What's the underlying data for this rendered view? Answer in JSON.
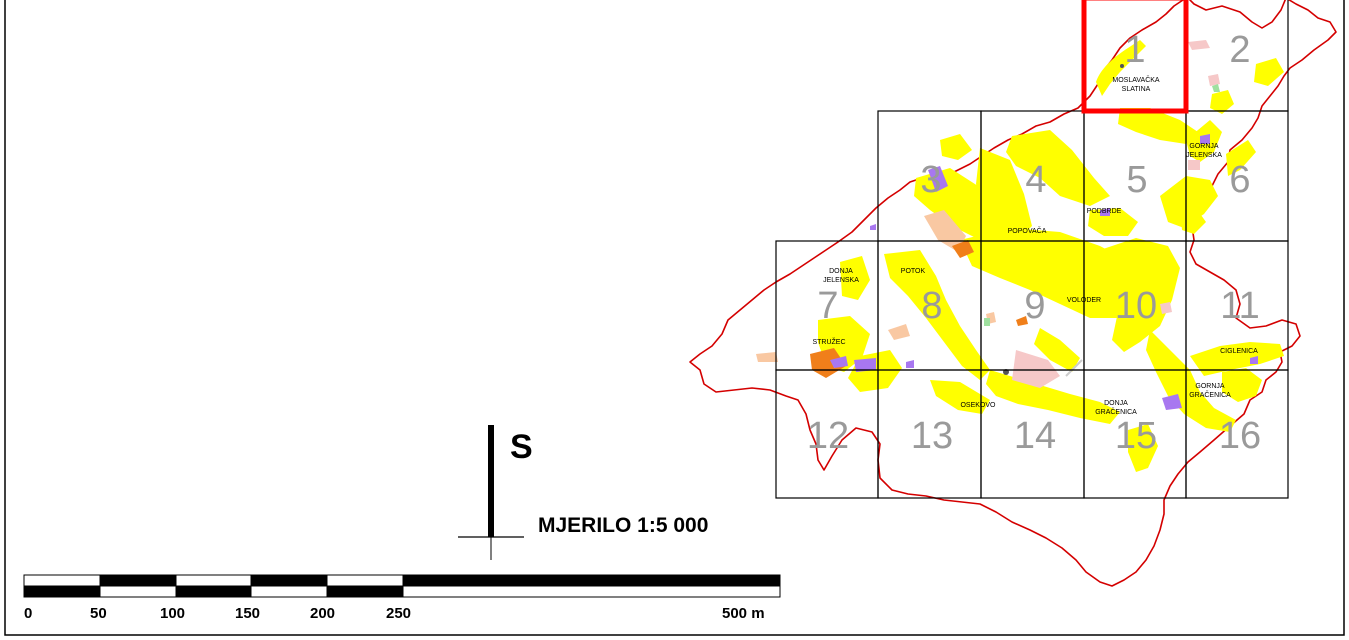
{
  "map": {
    "colors": {
      "boundary": "#d40000",
      "selected_sheet": "#ff0000",
      "grid": "#000000",
      "settlement": "#ffff00",
      "orange": "#f07f1a",
      "peach": "#f9c8a2",
      "purple": "#a877f0",
      "pink": "#f6c8c8"
    },
    "selected_sheet": "1",
    "sheets": [
      {
        "id": "s1",
        "label": "1"
      },
      {
        "id": "s2",
        "label": "2"
      },
      {
        "id": "s3",
        "label": "3"
      },
      {
        "id": "s4",
        "label": "4"
      },
      {
        "id": "s5",
        "label": "5"
      },
      {
        "id": "s6",
        "label": "6"
      },
      {
        "id": "s7",
        "label": "7"
      },
      {
        "id": "s8",
        "label": "8"
      },
      {
        "id": "s9",
        "label": "9"
      },
      {
        "id": "s10",
        "label": "10"
      },
      {
        "id": "s11",
        "label": "11"
      },
      {
        "id": "s12",
        "label": "12"
      },
      {
        "id": "s13",
        "label": "13"
      },
      {
        "id": "s14",
        "label": "14"
      },
      {
        "id": "s15",
        "label": "15"
      },
      {
        "id": "s16",
        "label": "16"
      }
    ],
    "places": {
      "moslavacka_1": "MOSLAVAČKA",
      "moslavacka_2": "SLATINA",
      "gornja_jelenska_1": "GORNJA",
      "gornja_jelenska_2": "JELENSKA",
      "podbrde": "PODBRDE",
      "popovaca": "POPOVAČA",
      "donja_jelenska_1": "DONJA",
      "donja_jelenska_2": "JELENSKA",
      "potok": "POTOK",
      "voloder": "VOLODER",
      "struzec": "STRUŽEC",
      "ciglenica": "CIGLENICA",
      "gornja_gracenica_1": "GORNJA",
      "gornja_gracenica_2": "GRAČENICA",
      "osekovo": "OSEKOVO",
      "donja_gracenica_1": "DONJA",
      "donja_gracenica_2": "GRAČENICA"
    }
  },
  "north_arrow": {
    "label": "S"
  },
  "scale": {
    "title": "MJERILO 1:5 000",
    "ticks": [
      "0",
      "50",
      "100",
      "150",
      "200",
      "250"
    ],
    "end_label": "500 m"
  }
}
